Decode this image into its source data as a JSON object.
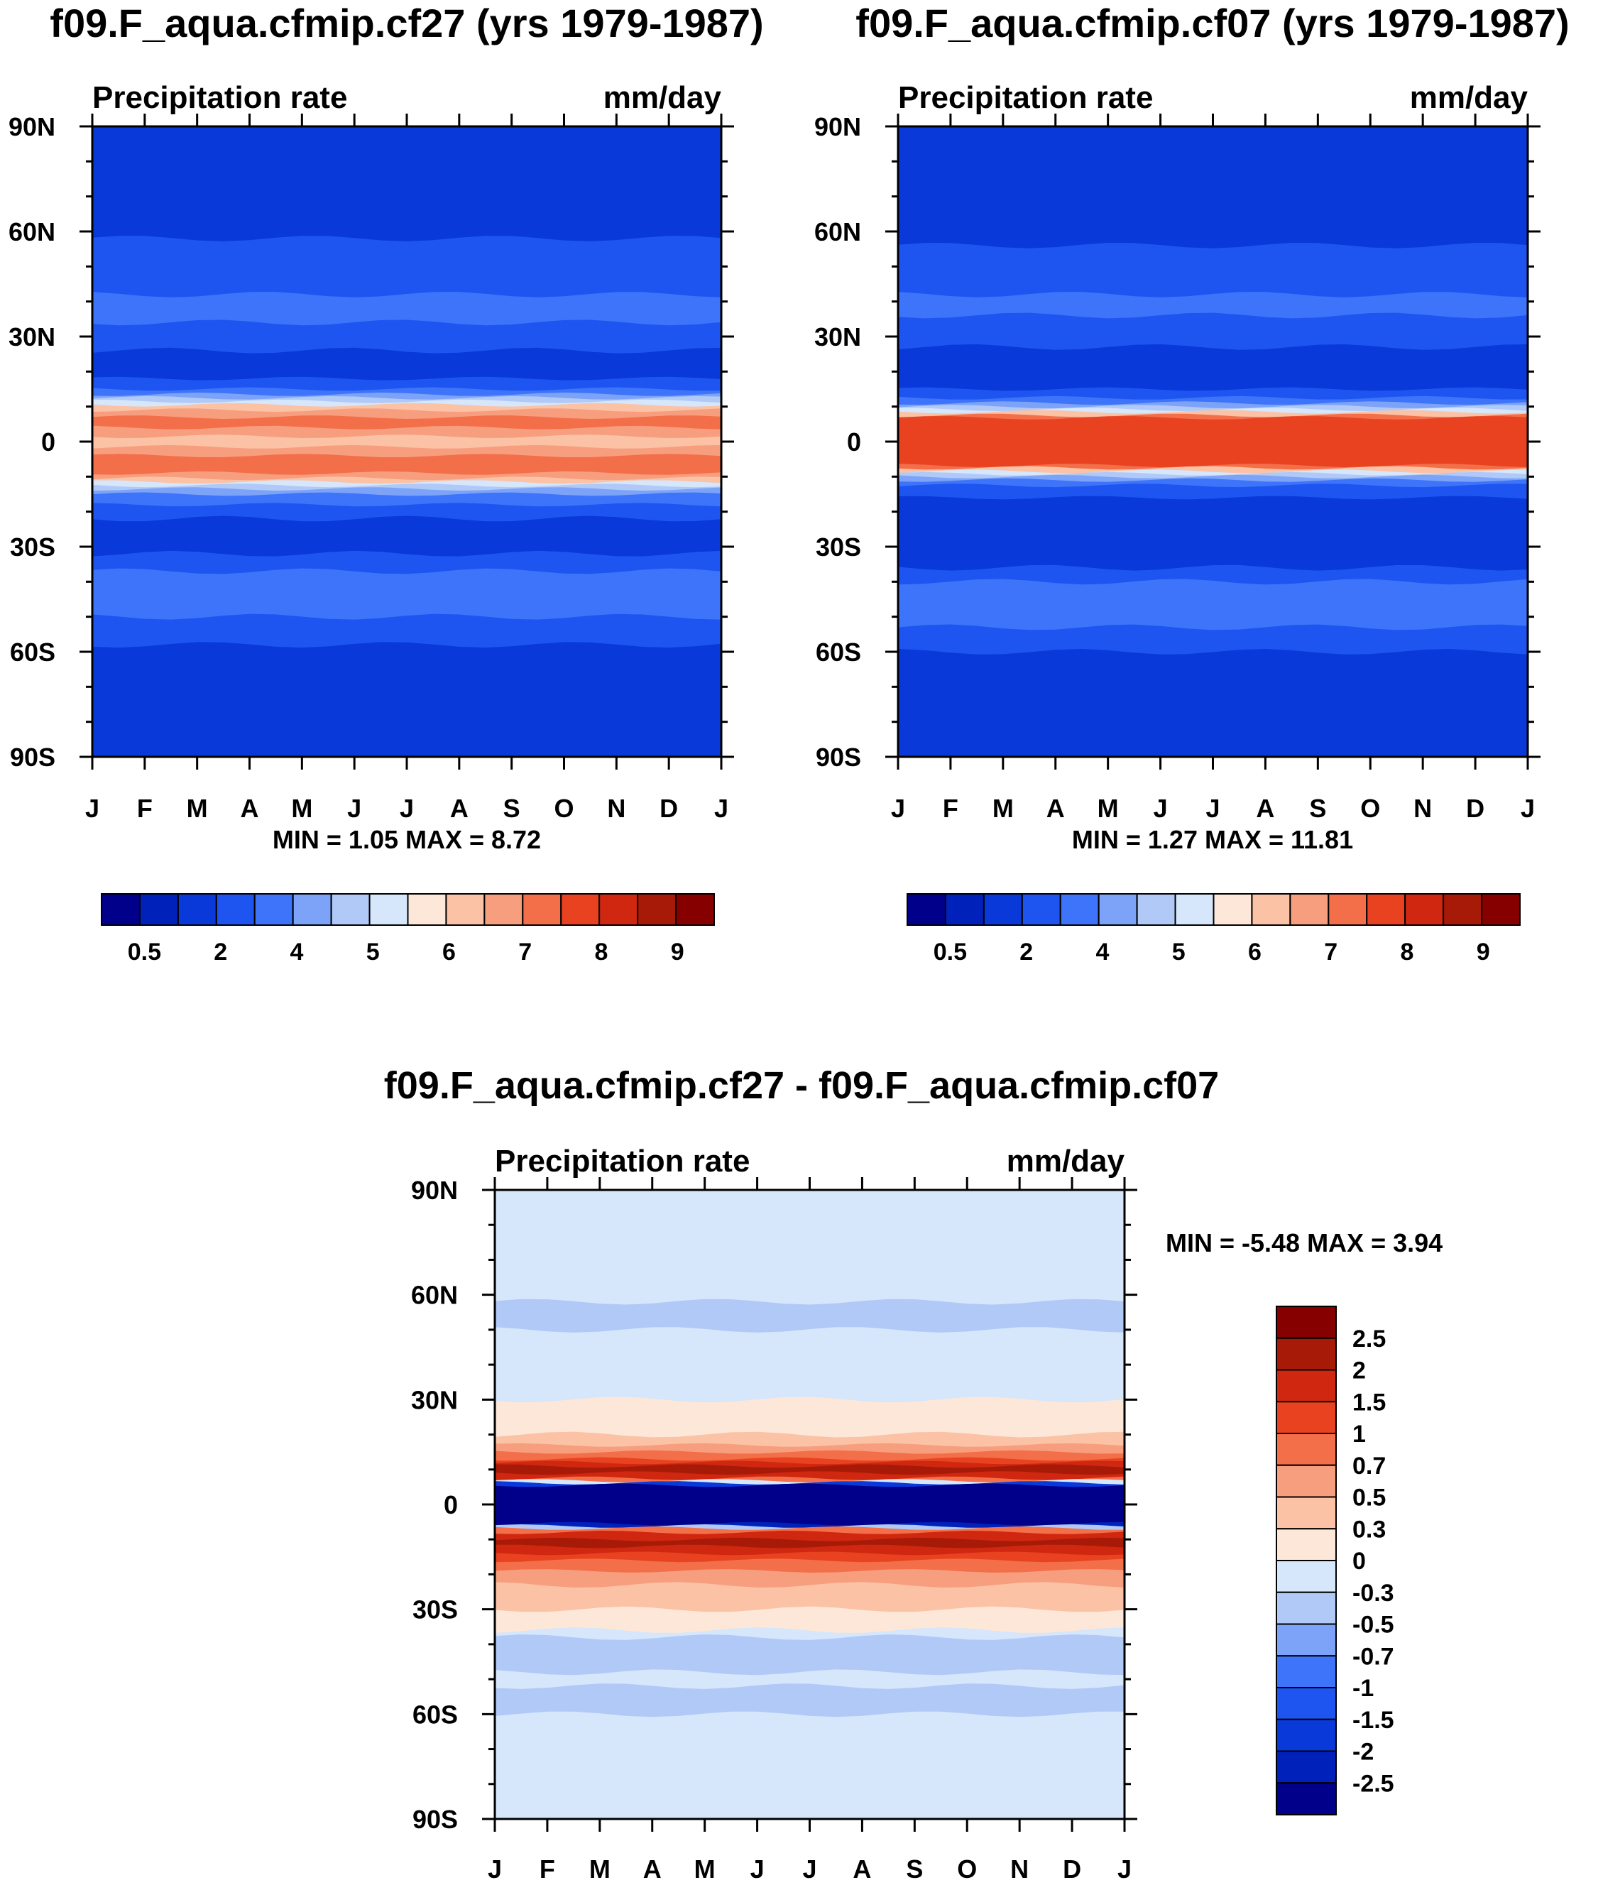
{
  "chart_data": [
    {
      "type": "heatmap",
      "title": "f09.F_aqua.cfmip.cf27 (yrs 1979-1987)",
      "left_label": "Precipitation rate",
      "right_label": "mm/day",
      "x_tick_labels": [
        "J",
        "F",
        "M",
        "A",
        "M",
        "J",
        "J",
        "A",
        "S",
        "O",
        "N",
        "D",
        "J"
      ],
      "y_tick_labels": [
        "90N",
        "60N",
        "30N",
        "0",
        "30S",
        "60S",
        "90S"
      ],
      "ylim": [
        -90,
        90
      ],
      "stats": {
        "min_label": "MIN =",
        "min": "1.05",
        "max_label": "MAX =",
        "max": "8.72"
      },
      "colorbar": {
        "orientation": "horizontal",
        "labels": [
          "0.5",
          "2",
          "4",
          "5",
          "6",
          "7",
          "8",
          "9"
        ]
      },
      "bands": [
        {
          "lat": 90,
          "level": 2
        },
        {
          "lat": 62,
          "level": 2
        },
        {
          "lat": 58,
          "level": 3
        },
        {
          "lat": 42,
          "level": 4
        },
        {
          "lat": 34,
          "level": 3
        },
        {
          "lat": 26,
          "level": 2
        },
        {
          "lat": 18,
          "level": 3
        },
        {
          "lat": 15,
          "level": 4
        },
        {
          "lat": 13.5,
          "level": 5
        },
        {
          "lat": 12.5,
          "level": 6
        },
        {
          "lat": 11.5,
          "level": 7
        },
        {
          "lat": 10.5,
          "level": 9
        },
        {
          "lat": 9,
          "level": 10
        },
        {
          "lat": 7,
          "level": 11
        },
        {
          "lat": 4,
          "level": 10
        },
        {
          "lat": 1.5,
          "level": 9
        },
        {
          "lat": -1.5,
          "level": 10
        },
        {
          "lat": -4,
          "level": 11
        },
        {
          "lat": -7,
          "level": 11
        },
        {
          "lat": -9,
          "level": 10
        },
        {
          "lat": -10.5,
          "level": 9
        },
        {
          "lat": -11.5,
          "level": 7
        },
        {
          "lat": -12.5,
          "level": 6
        },
        {
          "lat": -13.5,
          "level": 5
        },
        {
          "lat": -15,
          "level": 4
        },
        {
          "lat": -18,
          "level": 3
        },
        {
          "lat": -22,
          "level": 2
        },
        {
          "lat": -32,
          "level": 3
        },
        {
          "lat": -37,
          "level": 4
        },
        {
          "lat": -50,
          "level": 3
        },
        {
          "lat": -58,
          "level": 2
        },
        {
          "lat": -90,
          "level": 2
        }
      ]
    },
    {
      "type": "heatmap",
      "title": "f09.F_aqua.cfmip.cf07 (yrs 1979-1987)",
      "left_label": "Precipitation rate",
      "right_label": "mm/day",
      "x_tick_labels": [
        "J",
        "F",
        "M",
        "A",
        "M",
        "J",
        "J",
        "A",
        "S",
        "O",
        "N",
        "D",
        "J"
      ],
      "y_tick_labels": [
        "90N",
        "60N",
        "30N",
        "0",
        "30S",
        "60S",
        "90S"
      ],
      "ylim": [
        -90,
        90
      ],
      "stats": {
        "min_label": "MIN =",
        "min": "1.27",
        "max_label": "MAX =",
        "max": "11.81"
      },
      "colorbar": {
        "orientation": "horizontal",
        "labels": [
          "0.5",
          "2",
          "4",
          "5",
          "6",
          "7",
          "8",
          "9"
        ]
      },
      "bands": [
        {
          "lat": 90,
          "level": 2
        },
        {
          "lat": 63,
          "level": 2
        },
        {
          "lat": 56,
          "level": 3
        },
        {
          "lat": 42,
          "level": 4
        },
        {
          "lat": 36,
          "level": 3
        },
        {
          "lat": 27,
          "level": 2
        },
        {
          "lat": 15,
          "level": 3
        },
        {
          "lat": 12.5,
          "level": 4
        },
        {
          "lat": 11,
          "level": 5
        },
        {
          "lat": 10,
          "level": 6
        },
        {
          "lat": 9.2,
          "level": 7
        },
        {
          "lat": 8.5,
          "level": 9
        },
        {
          "lat": 7.5,
          "level": 11
        },
        {
          "lat": 6.8,
          "level": 12
        },
        {
          "lat": -6.8,
          "level": 11
        },
        {
          "lat": -7.5,
          "level": 9
        },
        {
          "lat": -8.5,
          "level": 7
        },
        {
          "lat": -9.2,
          "level": 6
        },
        {
          "lat": -10,
          "level": 5
        },
        {
          "lat": -11,
          "level": 4
        },
        {
          "lat": -12.5,
          "level": 3
        },
        {
          "lat": -16,
          "level": 2
        },
        {
          "lat": -36,
          "level": 3
        },
        {
          "lat": -40,
          "level": 4
        },
        {
          "lat": -53,
          "level": 3
        },
        {
          "lat": -60,
          "level": 2
        },
        {
          "lat": -90,
          "level": 2
        }
      ]
    },
    {
      "type": "heatmap",
      "title": "f09.F_aqua.cfmip.cf27 - f09.F_aqua.cfmip.cf07",
      "left_label": "Precipitation rate",
      "right_label": "mm/day",
      "x_tick_labels": [
        "J",
        "F",
        "M",
        "A",
        "M",
        "J",
        "J",
        "A",
        "S",
        "O",
        "N",
        "D",
        "J"
      ],
      "y_tick_labels": [
        "90N",
        "60N",
        "30N",
        "0",
        "30S",
        "60S",
        "90S"
      ],
      "ylim": [
        -90,
        90
      ],
      "stats": {
        "min_label": "MIN =",
        "min": "-5.48",
        "max_label": "MAX =",
        "max": "3.94"
      },
      "colorbar": {
        "orientation": "vertical",
        "labels": [
          "2.5",
          "2",
          "1.5",
          "1",
          "0.7",
          "0.5",
          "0.3",
          "0",
          "-0.3",
          "-0.5",
          "-0.7",
          "-1",
          "-1.5",
          "-2",
          "-2.5"
        ]
      },
      "bands": [
        {
          "lat": 90,
          "level": 7
        },
        {
          "lat": 62,
          "level": 7
        },
        {
          "lat": 58,
          "level": 6
        },
        {
          "lat": 50,
          "level": 7
        },
        {
          "lat": 30,
          "level": 8
        },
        {
          "lat": 20,
          "level": 9
        },
        {
          "lat": 17,
          "level": 10
        },
        {
          "lat": 15,
          "level": 11
        },
        {
          "lat": 13,
          "level": 12
        },
        {
          "lat": 12,
          "level": 13
        },
        {
          "lat": 11,
          "level": 14
        },
        {
          "lat": 9,
          "level": 13
        },
        {
          "lat": 7.5,
          "level": 11
        },
        {
          "lat": 6.8,
          "level": 7
        },
        {
          "lat": 6.2,
          "level": 2
        },
        {
          "lat": 5.5,
          "level": 0
        },
        {
          "lat": -5.5,
          "level": 1
        },
        {
          "lat": -6.2,
          "level": 6
        },
        {
          "lat": -6.8,
          "level": 11
        },
        {
          "lat": -8,
          "level": 13
        },
        {
          "lat": -10,
          "level": 14
        },
        {
          "lat": -12,
          "level": 13
        },
        {
          "lat": -14,
          "level": 12
        },
        {
          "lat": -16,
          "level": 11
        },
        {
          "lat": -19,
          "level": 10
        },
        {
          "lat": -23,
          "level": 9
        },
        {
          "lat": -30,
          "level": 8
        },
        {
          "lat": -36,
          "level": 7
        },
        {
          "lat": -38,
          "level": 6
        },
        {
          "lat": -48,
          "level": 7
        },
        {
          "lat": -52,
          "level": 6
        },
        {
          "lat": -60,
          "level": 7
        },
        {
          "lat": -90,
          "level": 7
        }
      ]
    }
  ],
  "palette": [
    "#00008b",
    "#0022bb",
    "#0a39d9",
    "#1e55f0",
    "#3d74fa",
    "#7ca3f7",
    "#b0c9f7",
    "#d6e6fb",
    "#fde7d8",
    "#fbc2a6",
    "#f79e7e",
    "#f36f4a",
    "#e94220",
    "#d02810",
    "#a81a08",
    "#870000"
  ]
}
